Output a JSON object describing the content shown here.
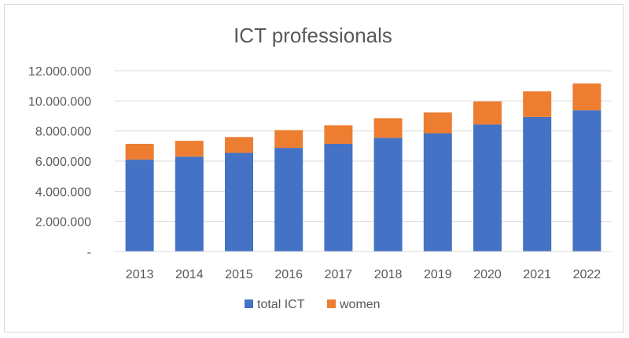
{
  "chart_data": {
    "type": "bar",
    "stacked": true,
    "title": "ICT professionals",
    "xlabel": "",
    "ylabel": "",
    "categories": [
      "2013",
      "2014",
      "2015",
      "2016",
      "2017",
      "2018",
      "2019",
      "2020",
      "2021",
      "2022"
    ],
    "series": [
      {
        "name": "total ICT",
        "color": "#4472c4",
        "values": [
          6100000,
          6300000,
          6550000,
          6880000,
          7150000,
          7550000,
          7850000,
          8430000,
          8930000,
          9380000
        ]
      },
      {
        "name": "women",
        "color": "#ed7d31",
        "values": [
          1050000,
          1050000,
          1050000,
          1180000,
          1230000,
          1300000,
          1380000,
          1530000,
          1700000,
          1770000
        ]
      }
    ],
    "ylim": [
      0,
      12000000
    ],
    "y_ticks": [
      {
        "value": 0,
        "label": "-"
      },
      {
        "value": 2000000,
        "label": "2.000.000"
      },
      {
        "value": 4000000,
        "label": "4.000.000"
      },
      {
        "value": 6000000,
        "label": "6.000.000"
      },
      {
        "value": 8000000,
        "label": "8.000.000"
      },
      {
        "value": 10000000,
        "label": "10.000.000"
      },
      {
        "value": 12000000,
        "label": "12.000.000"
      }
    ],
    "grid": true,
    "gridline_color": "#d9d9d9",
    "legend_position": "bottom"
  }
}
